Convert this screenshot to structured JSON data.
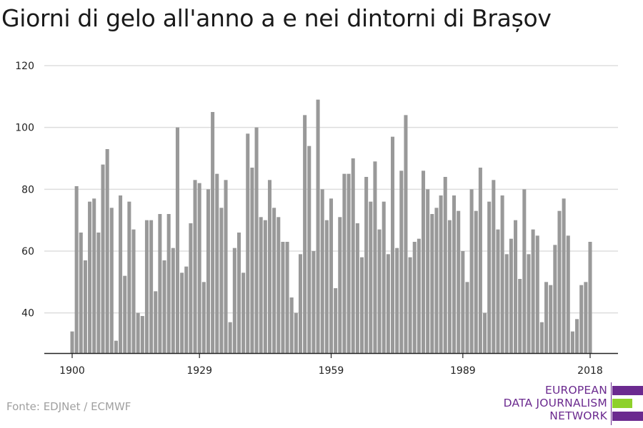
{
  "title": "Giorni di gelo all'anno a e nei dintorni di Brașov",
  "source": "Fonte: EDJNet / ECMWF",
  "logo": {
    "lines": [
      "EUROPEAN",
      "DATA JOURNALISM",
      "NETWORK"
    ],
    "colors": {
      "purple": "#6b2a8f",
      "green": "#8ed12b"
    }
  },
  "chart_data": {
    "type": "bar",
    "title": "Giorni di gelo all'anno a e nei dintorni di Brașov",
    "xlabel": "",
    "ylabel": "",
    "x_start": 1900,
    "x_end": 2018,
    "x_ticks": [
      1900,
      1929,
      1959,
      1989,
      2018
    ],
    "y_ticks": [
      40,
      60,
      80,
      100,
      120
    ],
    "ylim": [
      27,
      120
    ],
    "grid": true,
    "bar_color": "#999999",
    "values": [
      34,
      81,
      66,
      57,
      76,
      77,
      66,
      88,
      93,
      74,
      31,
      78,
      52,
      76,
      67,
      40,
      39,
      70,
      70,
      47,
      72,
      57,
      72,
      61,
      100,
      53,
      55,
      69,
      83,
      82,
      50,
      80,
      105,
      85,
      74,
      83,
      37,
      61,
      66,
      53,
      98,
      87,
      100,
      71,
      70,
      83,
      74,
      71,
      63,
      63,
      45,
      40,
      59,
      104,
      94,
      60,
      109,
      80,
      70,
      77,
      48,
      71,
      85,
      85,
      90,
      69,
      58,
      84,
      76,
      89,
      67,
      76,
      59,
      97,
      61,
      86,
      104,
      58,
      63,
      64,
      86,
      80,
      72,
      74,
      78,
      84,
      70,
      78,
      73,
      60,
      50,
      80,
      73,
      87,
      40,
      76,
      83,
      67,
      78,
      59,
      64,
      70,
      51,
      80,
      59,
      67,
      65,
      37,
      50,
      49,
      62,
      73,
      77,
      65,
      34,
      38,
      49,
      50,
      63
    ]
  }
}
